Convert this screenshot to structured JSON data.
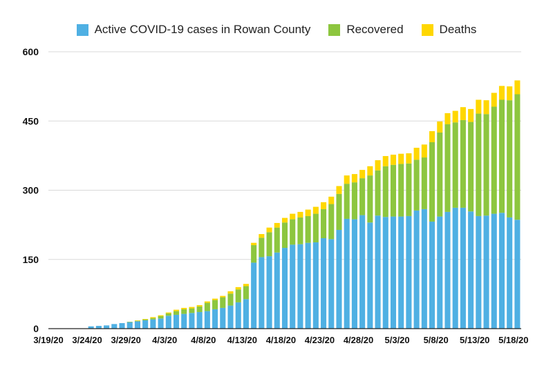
{
  "chart_data": {
    "type": "bar",
    "stacked": true,
    "title": "",
    "xlabel": "",
    "ylabel": "",
    "ylim": [
      0,
      600
    ],
    "y_ticks": [
      0,
      150,
      300,
      450,
      600
    ],
    "grid": true,
    "legend_position": "top",
    "x_tick_labels": [
      "3/19/20",
      "3/24/20",
      "3/29/20",
      "4/3/20",
      "4/8/20",
      "4/13/20",
      "4/18/20",
      "4/23/20",
      "4/28/20",
      "5/3/20",
      "5/8/20",
      "5/13/20",
      "5/18/20"
    ],
    "categories": [
      "3/19/20",
      "3/20/20",
      "3/21/20",
      "3/22/20",
      "3/23/20",
      "3/24/20",
      "3/25/20",
      "3/26/20",
      "3/27/20",
      "3/28/20",
      "3/29/20",
      "3/30/20",
      "3/31/20",
      "4/1/20",
      "4/2/20",
      "4/3/20",
      "4/4/20",
      "4/5/20",
      "4/6/20",
      "4/7/20",
      "4/8/20",
      "4/9/20",
      "4/10/20",
      "4/11/20",
      "4/12/20",
      "4/13/20",
      "4/14/20",
      "4/15/20",
      "4/16/20",
      "4/17/20",
      "4/18/20",
      "4/19/20",
      "4/20/20",
      "4/21/20",
      "4/22/20",
      "4/23/20",
      "4/24/20",
      "4/25/20",
      "4/26/20",
      "4/27/20",
      "4/28/20",
      "4/29/20",
      "4/30/20",
      "5/1/20",
      "5/2/20",
      "5/3/20",
      "5/4/20",
      "5/5/20",
      "5/6/20",
      "5/7/20",
      "5/8/20",
      "5/9/20",
      "5/10/20",
      "5/11/20",
      "5/12/20",
      "5/13/20",
      "5/14/20",
      "5/15/20",
      "5/16/20",
      "5/17/20",
      "5/18/20"
    ],
    "series": [
      {
        "name": "Active COVID-19 cases in Rowan County",
        "color": "#4FB0E3",
        "values": [
          0,
          0,
          0,
          0,
          0,
          5,
          6,
          7,
          10,
          12,
          14,
          16,
          18,
          20,
          22,
          28,
          30,
          32,
          34,
          36,
          38,
          42,
          45,
          50,
          57,
          64,
          143,
          155,
          157,
          165,
          175,
          182,
          183,
          186,
          187,
          196,
          194,
          214,
          238,
          237,
          246,
          230,
          245,
          242,
          243,
          243,
          244,
          256,
          259,
          232,
          243,
          253,
          262,
          262,
          254,
          244,
          245,
          249,
          251,
          241,
          236
        ]
      },
      {
        "name": "Recovered",
        "color": "#8DC63F",
        "values": [
          0,
          0,
          0,
          0,
          0,
          0,
          0,
          0,
          0,
          0,
          1,
          1,
          2,
          3,
          5,
          5,
          8,
          10,
          10,
          12,
          18,
          20,
          23,
          26,
          28,
          28,
          38,
          42,
          52,
          54,
          55,
          55,
          58,
          58,
          62,
          63,
          76,
          78,
          76,
          80,
          80,
          102,
          98,
          110,
          112,
          114,
          114,
          110,
          112,
          172,
          182,
          190,
          185,
          190,
          194,
          222,
          220,
          232,
          245,
          254,
          272
        ]
      },
      {
        "name": "Deaths",
        "color": "#FFD700",
        "values": [
          0,
          0,
          0,
          0,
          0,
          0,
          0,
          0,
          0,
          0,
          0,
          1,
          1,
          2,
          2,
          2,
          3,
          3,
          3,
          3,
          3,
          3,
          3,
          5,
          5,
          5,
          5,
          8,
          10,
          10,
          10,
          12,
          12,
          14,
          15,
          15,
          16,
          17,
          18,
          18,
          18,
          20,
          22,
          22,
          22,
          22,
          22,
          26,
          28,
          24,
          24,
          24,
          25,
          28,
          28,
          30,
          30,
          30,
          30,
          30,
          30
        ]
      }
    ]
  }
}
